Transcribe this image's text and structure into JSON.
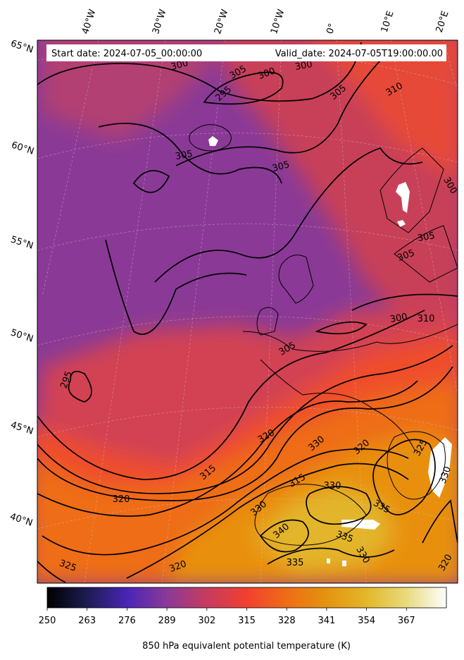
{
  "header": {
    "start_date": "Start date: 2024-07-05_00:00:00",
    "valid_date": "Valid_date: 2024-07-05T19:00:00.00"
  },
  "lat_labels": [
    "65°N",
    "60°N",
    "55°N",
    "50°N",
    "45°N",
    "40°N"
  ],
  "lon_labels": [
    "40°W",
    "30°W",
    "20°W",
    "10°W",
    "0°",
    "10°E",
    "20°E"
  ],
  "colorbar": {
    "label": "850 hPa equivalent potential temperature (K)",
    "ticks": [
      "250",
      "263",
      "276",
      "289",
      "302",
      "315",
      "328",
      "341",
      "354",
      "367"
    ],
    "range": [
      250,
      380
    ],
    "colormap": "CMRmap",
    "stops": [
      "#000000",
      "#1c1c52",
      "#4a25b5",
      "#8a3a97",
      "#c63c5e",
      "#f1402f",
      "#ee6d15",
      "#e4930f",
      "#e3b72a",
      "#e8db7d",
      "#fefefe"
    ]
  },
  "contour_labels": [
    "300",
    "300",
    "305",
    "310",
    "295",
    "300",
    "305",
    "305",
    "305",
    "305",
    "300",
    "310",
    "300",
    "305",
    "295",
    "305",
    "320",
    "315",
    "330",
    "315",
    "320",
    "325",
    "320",
    "330",
    "330",
    "340",
    "335",
    "335",
    "330",
    "335",
    "325",
    "320",
    "320",
    "330"
  ],
  "colors": {
    "cold": "#8a3a96",
    "mid": "#d24252",
    "warm": "#ef5a20",
    "hot": "#e89a12",
    "contour": "#000000"
  }
}
